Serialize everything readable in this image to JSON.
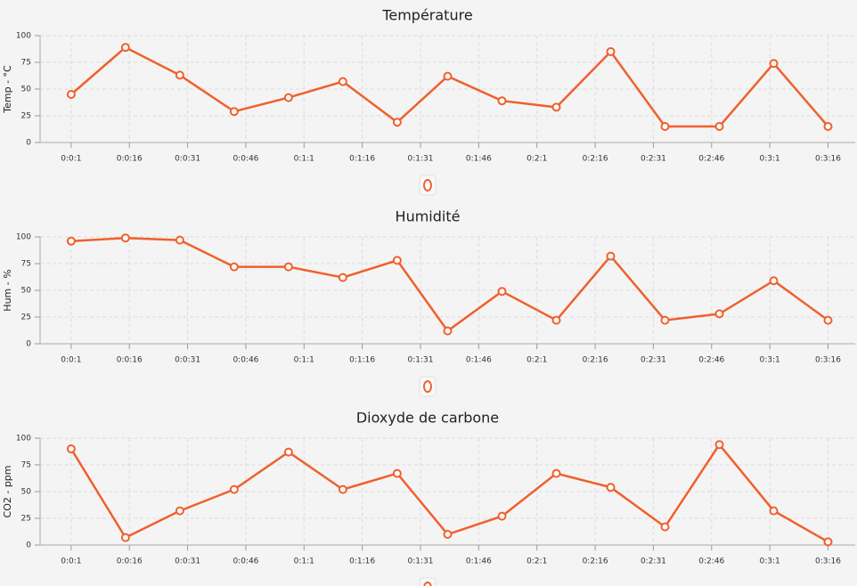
{
  "chart_data": [
    {
      "type": "line",
      "title": "Température",
      "ylabel": "Temp - °C",
      "color": "#f0602c",
      "x": [
        1,
        15,
        29,
        43,
        57,
        71,
        85,
        98,
        112,
        126,
        140,
        154,
        168,
        182,
        196
      ],
      "values": [
        45,
        89,
        63,
        29,
        42,
        57,
        19,
        62,
        39,
        33,
        85,
        15,
        15,
        74,
        15
      ],
      "xlim": [
        -7,
        203
      ],
      "ylim": [
        0,
        100
      ],
      "yticks": [
        0,
        25,
        50,
        75,
        100
      ],
      "xticks": [
        {
          "value": 1,
          "label": "0:0:1"
        },
        {
          "value": 16,
          "label": "0:0:16"
        },
        {
          "value": 31,
          "label": "0:0:31"
        },
        {
          "value": 46,
          "label": "0:0:46"
        },
        {
          "value": 61,
          "label": "0:1:1"
        },
        {
          "value": 76,
          "label": "0:1:16"
        },
        {
          "value": 91,
          "label": "0:1:31"
        },
        {
          "value": 106,
          "label": "0:1:46"
        },
        {
          "value": 121,
          "label": "0:2:1"
        },
        {
          "value": 136,
          "label": "0:2:16"
        },
        {
          "value": 151,
          "label": "0:2:31"
        },
        {
          "value": 166,
          "label": "0:2:46"
        },
        {
          "value": 181,
          "label": "0:3:1"
        },
        {
          "value": 196,
          "label": "0:3:16"
        }
      ],
      "grid": true
    },
    {
      "type": "line",
      "title": "Humidité",
      "ylabel": "Hum - %",
      "color": "#f0602c",
      "x": [
        1,
        15,
        29,
        43,
        57,
        71,
        85,
        98,
        112,
        126,
        140,
        154,
        168,
        182,
        196
      ],
      "values": [
        96,
        99,
        97,
        72,
        72,
        62,
        78,
        12,
        49,
        22,
        82,
        22,
        28,
        59,
        22
      ],
      "xlim": [
        -7,
        203
      ],
      "ylim": [
        0,
        100
      ],
      "yticks": [
        0,
        25,
        50,
        75,
        100
      ],
      "xticks": [
        {
          "value": 1,
          "label": "0:0:1"
        },
        {
          "value": 16,
          "label": "0:0:16"
        },
        {
          "value": 31,
          "label": "0:0:31"
        },
        {
          "value": 46,
          "label": "0:0:46"
        },
        {
          "value": 61,
          "label": "0:1:1"
        },
        {
          "value": 76,
          "label": "0:1:16"
        },
        {
          "value": 91,
          "label": "0:1:31"
        },
        {
          "value": 106,
          "label": "0:1:46"
        },
        {
          "value": 121,
          "label": "0:2:1"
        },
        {
          "value": 136,
          "label": "0:2:16"
        },
        {
          "value": 151,
          "label": "0:2:31"
        },
        {
          "value": 166,
          "label": "0:2:46"
        },
        {
          "value": 181,
          "label": "0:3:1"
        },
        {
          "value": 196,
          "label": "0:3:16"
        }
      ],
      "grid": true
    },
    {
      "type": "line",
      "title": "Dioxyde de carbone",
      "ylabel": "CO2 - ppm",
      "color": "#f0602c",
      "x": [
        1,
        15,
        29,
        43,
        57,
        71,
        85,
        98,
        112,
        126,
        140,
        154,
        168,
        182,
        196
      ],
      "values": [
        90,
        7,
        32,
        52,
        87,
        52,
        67,
        10,
        27,
        67,
        54,
        17,
        94,
        32,
        3
      ],
      "xlim": [
        -7,
        203
      ],
      "ylim": [
        0,
        100
      ],
      "yticks": [
        0,
        25,
        50,
        75,
        100
      ],
      "xticks": [
        {
          "value": 1,
          "label": "0:0:1"
        },
        {
          "value": 16,
          "label": "0:0:16"
        },
        {
          "value": 31,
          "label": "0:0:31"
        },
        {
          "value": 46,
          "label": "0:0:46"
        },
        {
          "value": 61,
          "label": "0:1:1"
        },
        {
          "value": 76,
          "label": "0:1:16"
        },
        {
          "value": 91,
          "label": "0:1:31"
        },
        {
          "value": 106,
          "label": "0:1:46"
        },
        {
          "value": 121,
          "label": "0:2:1"
        },
        {
          "value": 136,
          "label": "0:2:16"
        },
        {
          "value": 151,
          "label": "0:2:31"
        },
        {
          "value": 166,
          "label": "0:2:46"
        },
        {
          "value": 181,
          "label": "0:3:1"
        },
        {
          "value": 196,
          "label": "0:3:16"
        }
      ],
      "grid": true
    }
  ]
}
